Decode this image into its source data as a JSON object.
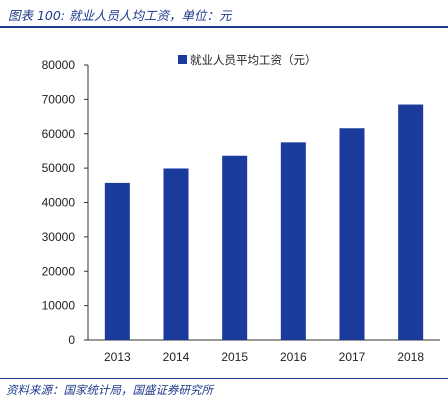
{
  "figure": {
    "title": "图表 100:  就业人员人均工资，单位：元",
    "source": "资料来源：国家统计局，国盛证券研究所"
  },
  "colors": {
    "bar": "#1a3a9c",
    "accent": "#1d3a8a",
    "axis": "#333333"
  },
  "chart_data": {
    "type": "bar",
    "categories": [
      "2013",
      "2014",
      "2015",
      "2016",
      "2017",
      "2018"
    ],
    "series": [
      {
        "name": "就业人员平均工资（元）",
        "values": [
          45700,
          49900,
          53600,
          57500,
          61600,
          68500
        ]
      }
    ],
    "ylim": [
      0,
      80000
    ],
    "yticks": [
      0,
      10000,
      20000,
      30000,
      40000,
      50000,
      60000,
      70000,
      80000
    ],
    "legend_position": "top-right",
    "grid": false
  }
}
